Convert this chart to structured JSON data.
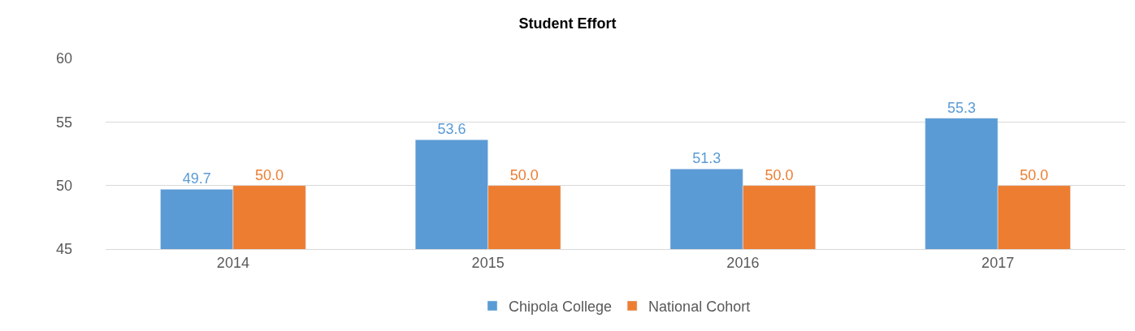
{
  "chart_data": {
    "type": "bar",
    "title": "Student Effort",
    "categories": [
      "2014",
      "2015",
      "2016",
      "2017"
    ],
    "series": [
      {
        "name": "Chipola College",
        "color": "#5b9bd5",
        "values": [
          49.7,
          53.6,
          51.3,
          55.3
        ],
        "value_labels": [
          "49.7",
          "53.6",
          "51.3",
          "55.3"
        ]
      },
      {
        "name": "National Cohort",
        "color": "#ed7d31",
        "values": [
          50,
          50,
          50,
          50
        ],
        "value_labels": [
          "50.0",
          "50.0",
          "50.0",
          "50.0"
        ]
      }
    ],
    "ylim": [
      45,
      60
    ],
    "yticks": [
      45,
      50,
      55,
      60
    ],
    "grid": "y",
    "legend": "bottom"
  }
}
